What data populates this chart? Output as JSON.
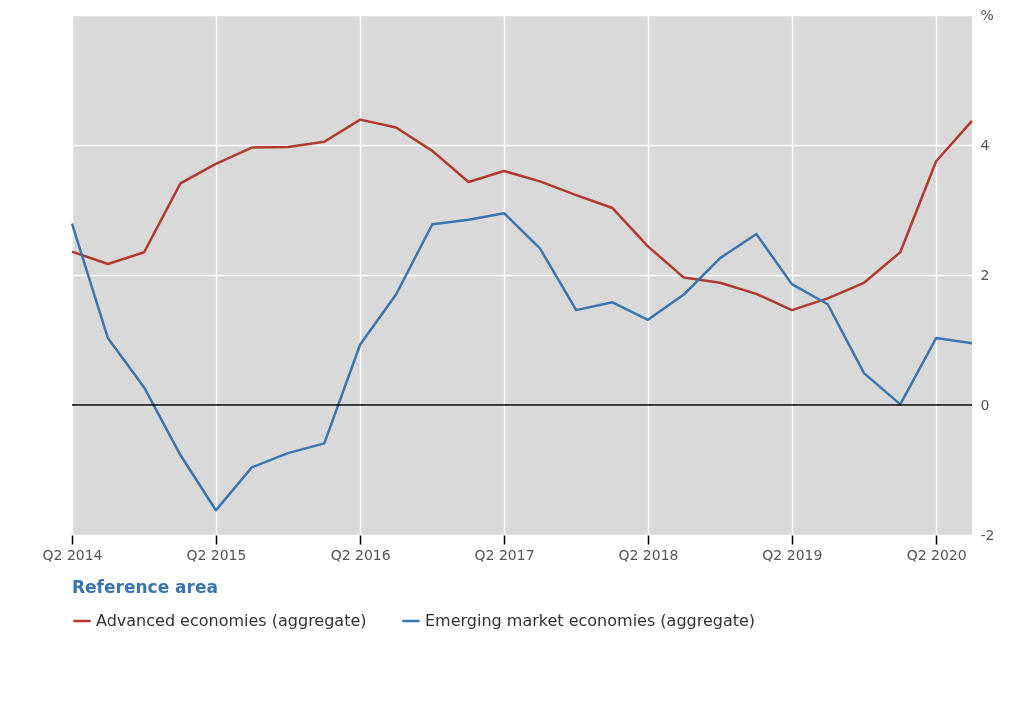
{
  "chart_data": {
    "type": "line",
    "x": [
      "2014-04",
      "2014-07",
      "2014-10",
      "2015-01",
      "2015-04",
      "2015-07",
      "2015-10",
      "2016-01",
      "2016-04",
      "2016-07",
      "2016-10",
      "2017-01",
      "2017-04",
      "2017-07",
      "2017-10",
      "2018-01",
      "2018-04",
      "2018-07",
      "2018-10",
      "2019-01",
      "2019-04",
      "2019-07",
      "2019-10",
      "2020-01",
      "2020-04",
      "2020-07"
    ],
    "series": [
      {
        "name": "Advanced economies (aggregate)",
        "color": "#b03a2e",
        "values": [
          2.36,
          2.17,
          2.35,
          3.41,
          3.71,
          3.96,
          3.97,
          4.05,
          4.39,
          4.27,
          3.91,
          3.43,
          3.6,
          3.44,
          3.23,
          3.03,
          2.44,
          1.96,
          1.88,
          1.71,
          1.46,
          1.64,
          1.88,
          2.35,
          3.75,
          4.37
        ]
      },
      {
        "name": "Emerging market economies (aggregate)",
        "color": "#3a75b0",
        "values": [
          2.79,
          1.03,
          0.27,
          -0.77,
          -1.62,
          -0.96,
          -0.74,
          -0.59,
          0.93,
          1.7,
          2.78,
          2.85,
          2.95,
          2.41,
          1.46,
          1.58,
          1.31,
          1.7,
          2.26,
          2.63,
          1.86,
          1.55,
          0.49,
          0.01,
          1.03,
          0.95
        ]
      }
    ],
    "xlim": [
      "2014-04",
      "2020-07"
    ],
    "xticks": [
      {
        "value": "2014-04",
        "label": "Q2 2014"
      },
      {
        "value": "2015-04",
        "label": "Q2 2015"
      },
      {
        "value": "2016-04",
        "label": "Q2 2016"
      },
      {
        "value": "2017-04",
        "label": "Q2 2017"
      },
      {
        "value": "2018-04",
        "label": "Q2 2018"
      },
      {
        "value": "2019-04",
        "label": "Q2 2019"
      },
      {
        "value": "2020-04",
        "label": "Q2 2020"
      }
    ],
    "ylim": [
      -2,
      6
    ],
    "yticks": [
      -2,
      0,
      2,
      4,
      {
        "value": 6,
        "label": "%"
      }
    ],
    "ref_lines": [
      {
        "axis": "y",
        "value": 0,
        "color": "#000000"
      }
    ],
    "grid": true,
    "legend": "bottom",
    "legend_title": "Reference area"
  }
}
